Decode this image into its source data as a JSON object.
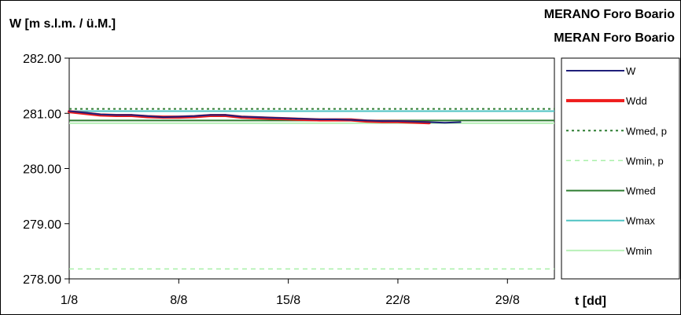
{
  "chart_data": {
    "type": "line",
    "title": "MERANO Foro Boario",
    "subtitle": "MERAN Foro Boario",
    "ylabel": "W [m s.l.m. / ü.M.]",
    "xlabel": "t [dd]",
    "ylim": [
      278.0,
      282.0
    ],
    "yticks": [
      "278.00",
      "279.00",
      "280.00",
      "281.00",
      "282.00"
    ],
    "xlim": [
      1,
      32
    ],
    "xticks": [
      {
        "day": 1,
        "label": "1/8"
      },
      {
        "day": 8,
        "label": "8/8"
      },
      {
        "day": 15,
        "label": "15/8"
      },
      {
        "day": 22,
        "label": "22/8"
      },
      {
        "day": 29,
        "label": "29/8"
      }
    ],
    "grid": false,
    "legend_position": "right",
    "series": [
      {
        "name": "W",
        "color": "#1f1f7a",
        "style": "solid",
        "x": [
          1,
          2,
          3,
          4,
          5,
          6,
          7,
          8,
          9,
          10,
          11,
          12,
          13,
          14,
          15,
          16,
          17,
          18,
          19,
          20,
          21,
          22,
          23,
          24,
          25,
          26
        ],
        "y": [
          281.04,
          281.01,
          280.98,
          280.97,
          280.97,
          280.95,
          280.93,
          280.94,
          280.95,
          280.97,
          280.97,
          280.94,
          280.93,
          280.92,
          280.91,
          280.9,
          280.89,
          280.89,
          280.88,
          280.87,
          280.86,
          280.86,
          280.85,
          280.84,
          280.83,
          280.84
        ]
      },
      {
        "name": "Wdd",
        "color": "#ee1c1c",
        "style": "thick",
        "x": [
          1,
          2,
          3,
          4,
          5,
          6,
          7,
          8,
          9,
          10,
          11,
          12,
          13,
          14,
          15,
          16,
          17,
          18,
          19,
          20,
          21,
          22,
          23,
          24
        ],
        "y": [
          281.03,
          281.0,
          280.97,
          280.96,
          280.96,
          280.94,
          280.93,
          280.93,
          280.94,
          280.96,
          280.96,
          280.93,
          280.92,
          280.91,
          280.9,
          280.89,
          280.88,
          280.88,
          280.88,
          280.86,
          280.85,
          280.85,
          280.84,
          280.83
        ]
      },
      {
        "name": "Wmed, p",
        "color": "#2e7d32",
        "style": "dotted",
        "constant": 281.08
      },
      {
        "name": "Wmin, p",
        "color": "#a8f0a8",
        "style": "dashed",
        "constant": 278.18
      },
      {
        "name": "Wmed",
        "color": "#2e7d32",
        "style": "solid",
        "constant": 280.87
      },
      {
        "name": "Wmax",
        "color": "#4fc3c3",
        "style": "solid",
        "constant": 281.04
      },
      {
        "name": "Wmin",
        "color": "#b8f0b8",
        "style": "solid",
        "constant": 280.82
      }
    ]
  }
}
